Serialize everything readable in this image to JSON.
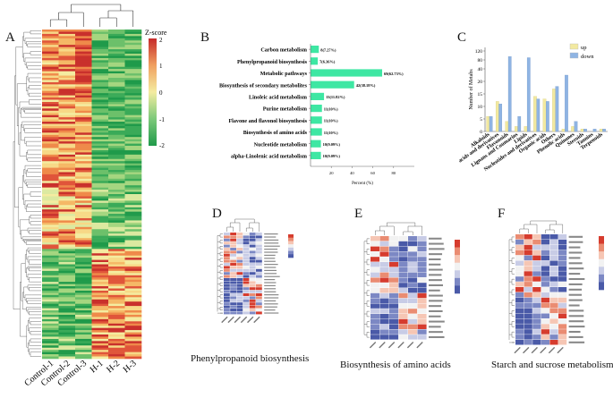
{
  "panels": {
    "a": "A",
    "b": "B",
    "c": "C",
    "d": "D",
    "e": "E",
    "f": "F"
  },
  "legend_a": {
    "title": "Z-score",
    "ticks": [
      "2",
      "1",
      "0",
      "-1",
      "-2"
    ]
  },
  "heatmap_a": {
    "columns": [
      "Control-1",
      "Control-2",
      "Control-3",
      "H-1",
      "H-2",
      "H-3"
    ]
  },
  "captions": {
    "d": "Phenylpropanoid biosynthesis",
    "e": "Biosynthesis of amino acids",
    "f": "Starch and sucrose metabolism"
  },
  "colors": {
    "hot": "#c62a2a",
    "mid": "#f2e48a",
    "cold": "#1f9a4a",
    "bar_b": "#3ee7a3",
    "up": "#f2e9a0",
    "down": "#8fb4e3"
  },
  "chart_data": [
    {
      "id": "B",
      "type": "bar",
      "orientation": "horizontal",
      "categories": [
        "Carbon metabolism",
        "Phenylpropanoid biosynthesis",
        "Metabolic pathways",
        "Biosynthesis of secondary metabolites",
        "Linoleic acid metabolism",
        "Purine metabolism",
        "Flavone and flavonol biosynthesis",
        "Biosynthesis of amino acids",
        "Nucleotide metabolism",
        "alpha-Linolenic acid metabolism"
      ],
      "values": [
        8,
        7,
        69,
        42,
        13,
        11,
        11,
        11,
        10,
        10
      ],
      "labels": [
        "8(7.27%)",
        "7(6.36%)",
        "69(62.73%)",
        "42(38.18%)",
        "13(11.82%)",
        "11(10%)",
        "11(10%)",
        "11(10%)",
        "10(9.09%)",
        "10(9.09%)"
      ],
      "xticks": [
        "20",
        "40",
        "60",
        "80"
      ],
      "xlabel": "Percent (%)",
      "xlim": [
        0,
        100
      ]
    },
    {
      "id": "C",
      "type": "bar",
      "legend": [
        "up",
        "down"
      ],
      "ylabel": "Number of Metabs",
      "yticks": [
        "0",
        "5",
        "10",
        "15",
        "20",
        "40",
        "80",
        "120"
      ],
      "categories": [
        "Alkaloids",
        "Amino acids and derivatives",
        "Flavonoids",
        "Lignans and Coumarins",
        "Lipids",
        "Nucleotides and derivatives",
        "Organic acids",
        "Others",
        "Phenolic acids",
        "Quinones",
        "Steroids",
        "Tannins",
        "Terpenoids"
      ],
      "series": [
        {
          "name": "up",
          "values": [
            6,
            12,
            4,
            2,
            2,
            14,
            13,
            17,
            1,
            2,
            1,
            0,
            1
          ]
        },
        {
          "name": "down",
          "values": [
            6,
            11,
            95,
            6,
            90,
            13,
            12,
            18,
            30,
            4,
            1,
            1,
            1
          ]
        }
      ]
    }
  ]
}
